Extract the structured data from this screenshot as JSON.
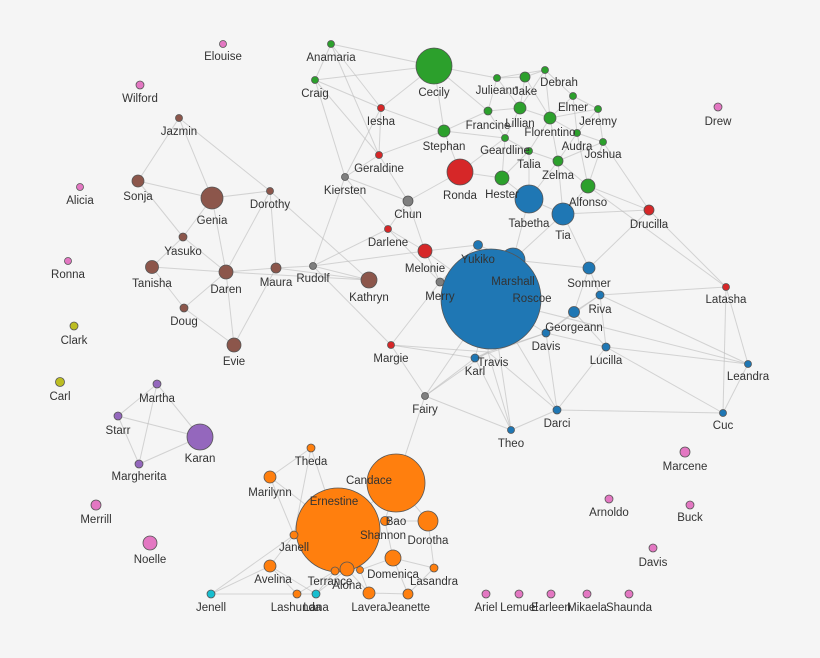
{
  "nodes": [
    "Elouise",
    "Wilford",
    "Drew",
    "Alicia",
    "Ronna",
    "Marcene",
    "Arnoldo",
    "Buck",
    "Merrill",
    "Noelle",
    "Davis",
    "Ariel",
    "Lemuel",
    "Earleen",
    "Mikaela",
    "Shaunda",
    "Clark",
    "Carl",
    "Jazmin",
    "Sonja",
    "Genia",
    "Dorothy",
    "Yasuko",
    "Tanisha",
    "Daren",
    "Maura",
    "Doug",
    "Evie",
    "Kathryn",
    "Kiersten",
    "Chun",
    "Rudolf",
    "Merry",
    "Fairy",
    "Iesha",
    "Geraldine",
    "Ronda",
    "Darlene",
    "Melonie",
    "Margie",
    "Drucilla",
    "Latasha",
    "Anamaria",
    "Craig",
    "Cecily",
    "Julieann",
    "Jake",
    "Debrah",
    "Francine",
    "Lillian",
    "Elmer",
    "Jeremy",
    "Florentino",
    "Audra",
    "Geardline",
    "Talia",
    "Joshua",
    "Stephan",
    "Zelma",
    "Hester",
    "Alfonso",
    "Tabetha",
    "Tia",
    "Yukiko",
    "Marshall",
    "Roscoe",
    "Sommer",
    "Riva",
    "Georgeann",
    "Davis",
    "Lucilla",
    "Karl",
    "Travis",
    "Leandra",
    "Cuc",
    "Theo",
    "Darci",
    "Martha",
    "Starr",
    "Karan",
    "Margherita",
    "Theda",
    "Candace",
    "Marilynn",
    "Ernestine",
    "Bao",
    "Dorotha",
    "Janell",
    "Shannon",
    "Avelina",
    "Domenica",
    "Lasandra",
    "Terrance",
    "Alona",
    "Lashunda",
    "Lavera",
    "Jeanette",
    "Jenell",
    "Lana"
  ]
}
